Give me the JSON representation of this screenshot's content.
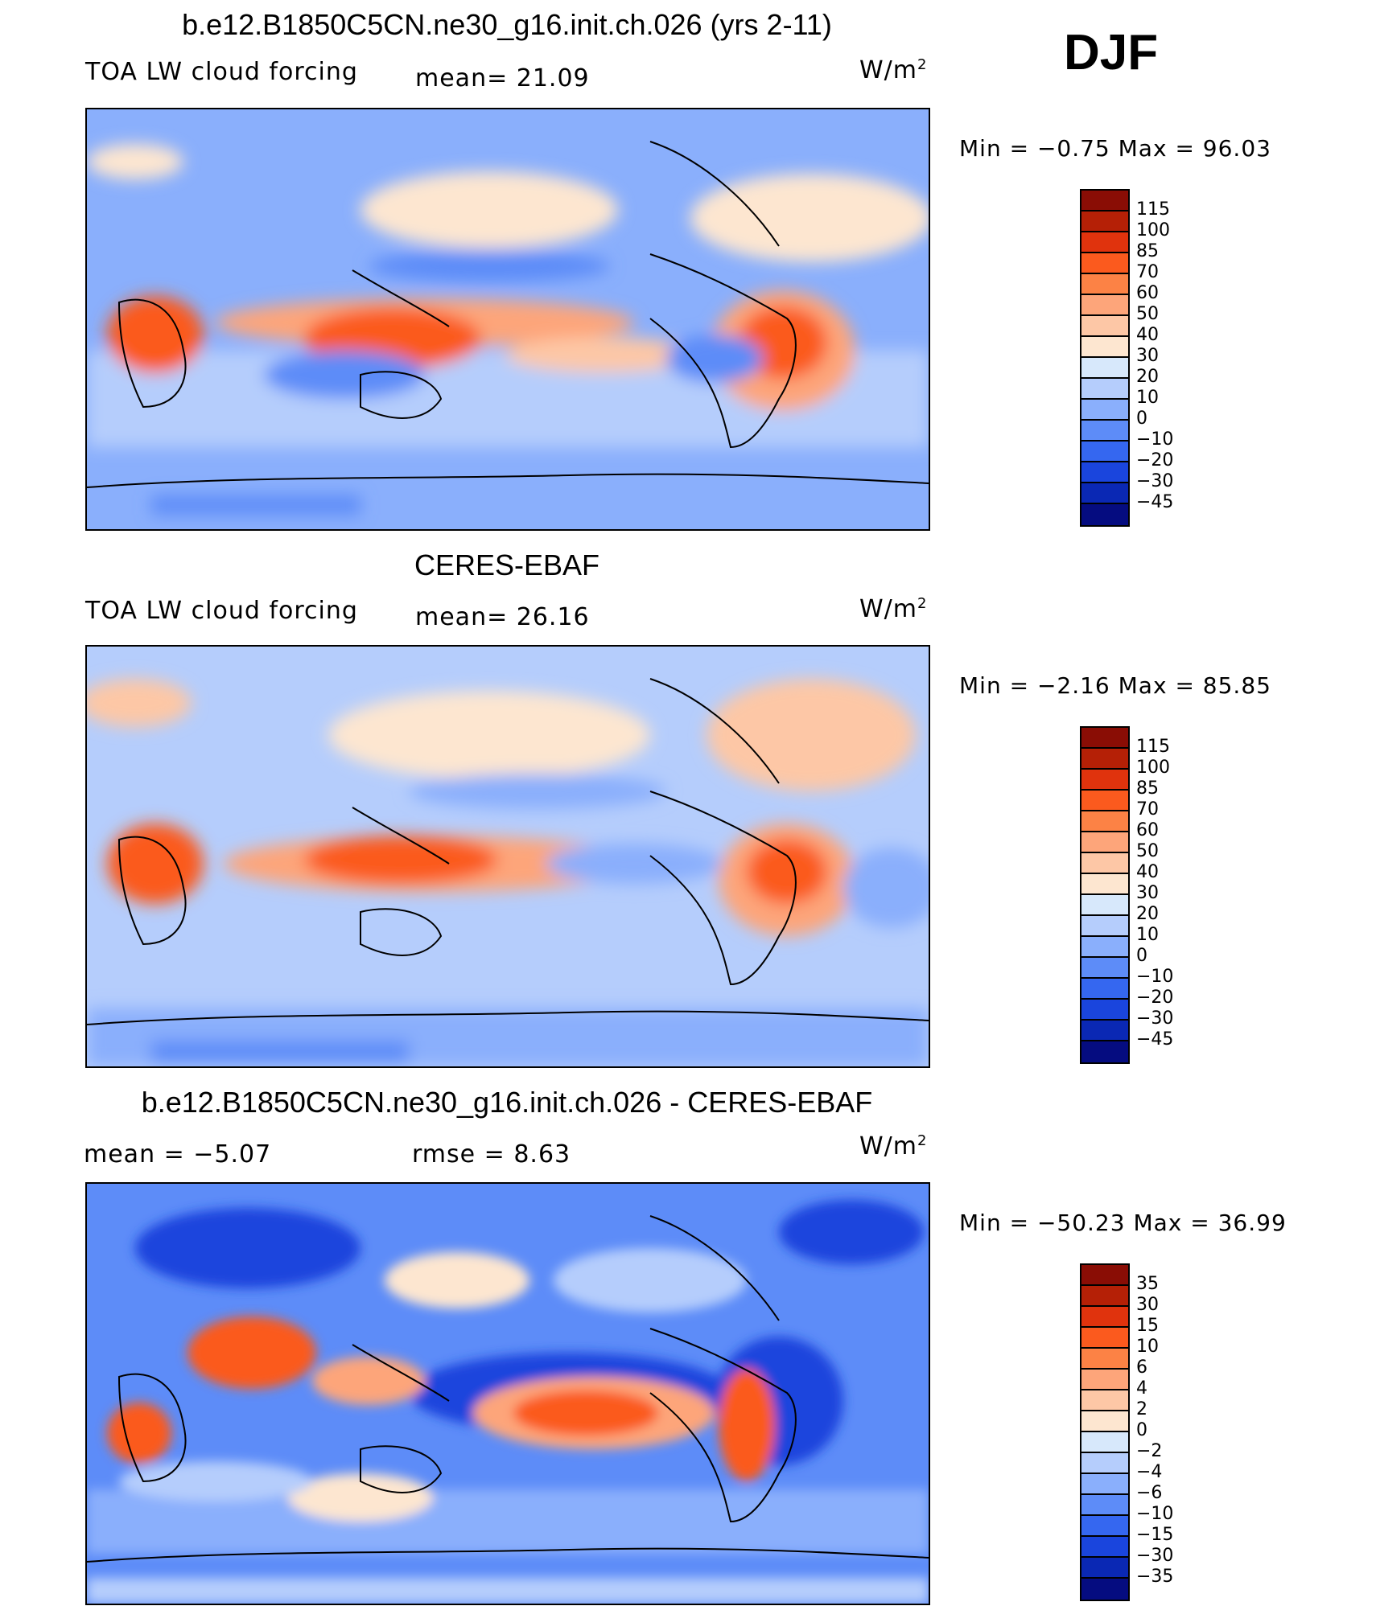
{
  "season": "DJF",
  "units_base": "W/m",
  "units_exp": "2",
  "panels": [
    {
      "title": "b.e12.B1850C5CN.ne30_g16.init.ch.026 (yrs 2-11)",
      "left_label": "TOA LW cloud forcing",
      "mid_label": "mean=   21.09",
      "min_max": "Min =    −0.75  Max =    96.03",
      "colorbar": {
        "labels": [
          "115",
          "100",
          "85",
          "70",
          "60",
          "50",
          "40",
          "30",
          "20",
          "10",
          "0",
          "−10",
          "−20",
          "−30",
          "−45"
        ],
        "colors": [
          "#8a0d05",
          "#b52006",
          "#e0330d",
          "#fb5a1e",
          "#fc8245",
          "#fda57a",
          "#fdc7a6",
          "#fde6d0",
          "#d7e8fb",
          "#b5cdfc",
          "#8aaffc",
          "#5d8cf8",
          "#3567f0",
          "#1a45dd",
          "#0a28b4",
          "#050c80"
        ]
      }
    },
    {
      "title": "CERES-EBAF",
      "left_label": "TOA LW cloud forcing",
      "mid_label": "mean=   26.16",
      "min_max": "Min =    −2.16  Max =    85.85",
      "colorbar": {
        "labels": [
          "115",
          "100",
          "85",
          "70",
          "60",
          "50",
          "40",
          "30",
          "20",
          "10",
          "0",
          "−10",
          "−20",
          "−30",
          "−45"
        ],
        "colors": [
          "#8a0d05",
          "#b52006",
          "#e0330d",
          "#fb5a1e",
          "#fc8245",
          "#fda57a",
          "#fdc7a6",
          "#fde6d0",
          "#d7e8fb",
          "#b5cdfc",
          "#8aaffc",
          "#5d8cf8",
          "#3567f0",
          "#1a45dd",
          "#0a28b4",
          "#050c80"
        ]
      }
    },
    {
      "title": "b.e12.B1850C5CN.ne30_g16.init.ch.026 - CERES-EBAF",
      "left_label": "mean =    −5.07",
      "mid_label": "rmse =     8.63",
      "min_max": "Min = −50.23  Max =    36.99",
      "colorbar": {
        "labels": [
          "35",
          "30",
          "15",
          "10",
          "6",
          "4",
          "2",
          "0",
          "−2",
          "−4",
          "−6",
          "−10",
          "−15",
          "−30",
          "−35"
        ],
        "colors": [
          "#8a0d05",
          "#b52006",
          "#e0330d",
          "#fb5a1e",
          "#fc8245",
          "#fda57a",
          "#fdc7a6",
          "#fde6d0",
          "#d7e8fb",
          "#b5cdfc",
          "#8aaffc",
          "#5d8cf8",
          "#3567f0",
          "#1a45dd",
          "#0a28b4",
          "#050c80"
        ]
      }
    }
  ]
}
